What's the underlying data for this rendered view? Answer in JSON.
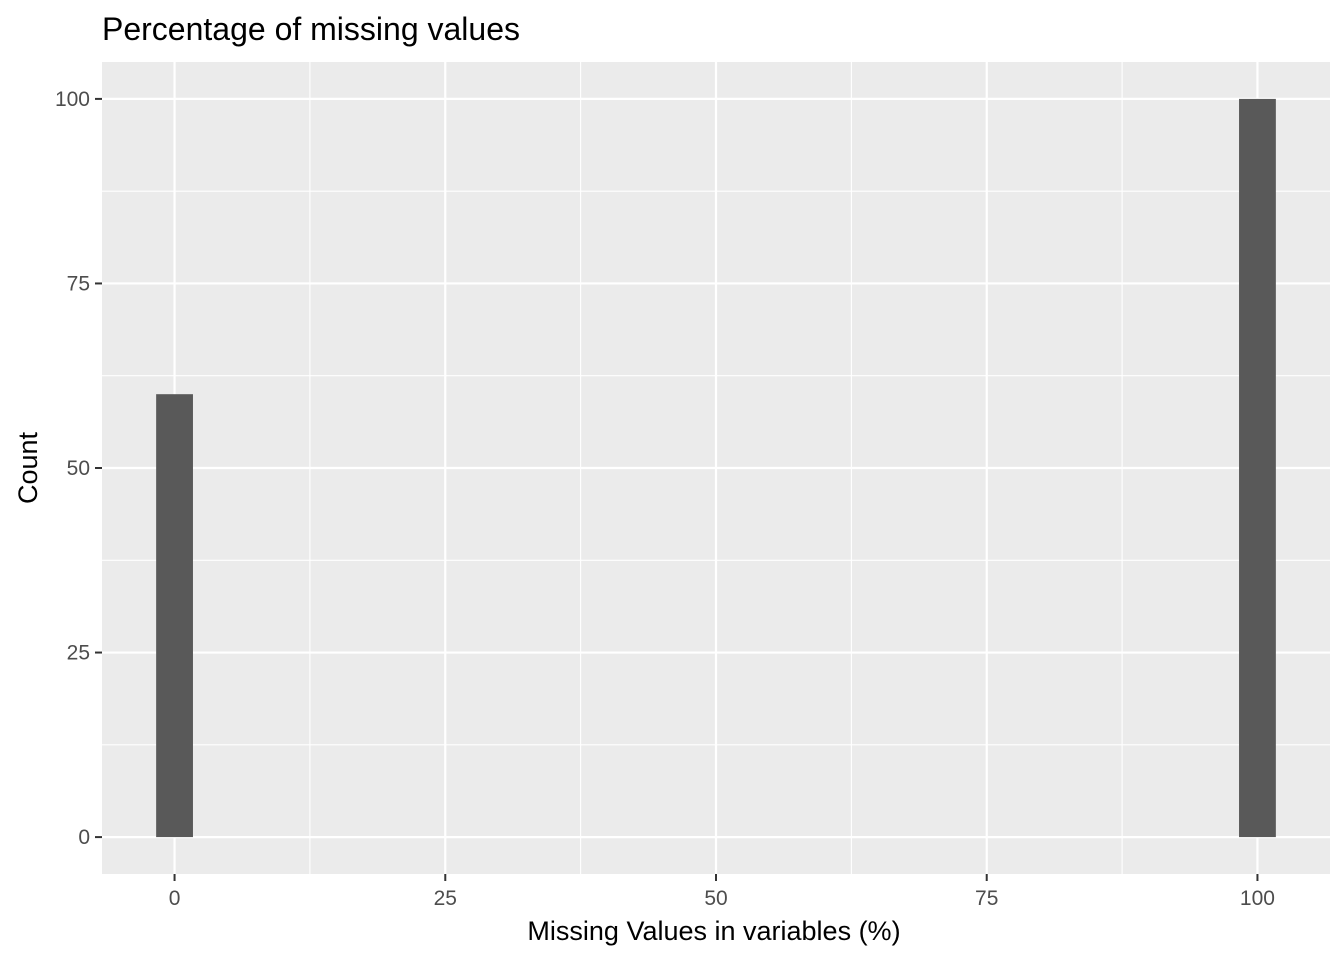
{
  "chart_data": {
    "type": "bar",
    "title": "Percentage of missing values",
    "xlabel": "Missing Values in variables (%)",
    "ylabel": "Count",
    "x_ticks": [
      0,
      25,
      50,
      75,
      100
    ],
    "y_ticks": [
      0,
      25,
      50,
      75,
      100
    ],
    "xlim": [
      -6.7,
      106.7
    ],
    "ylim": [
      -5,
      105
    ],
    "bin_width": 3.4,
    "bars": [
      {
        "x": 0,
        "count": 60
      },
      {
        "x": 100,
        "count": 100
      }
    ],
    "grid": true,
    "panel_color": "#ebebeb",
    "grid_color": "#ffffff",
    "bar_color": "#595959"
  }
}
